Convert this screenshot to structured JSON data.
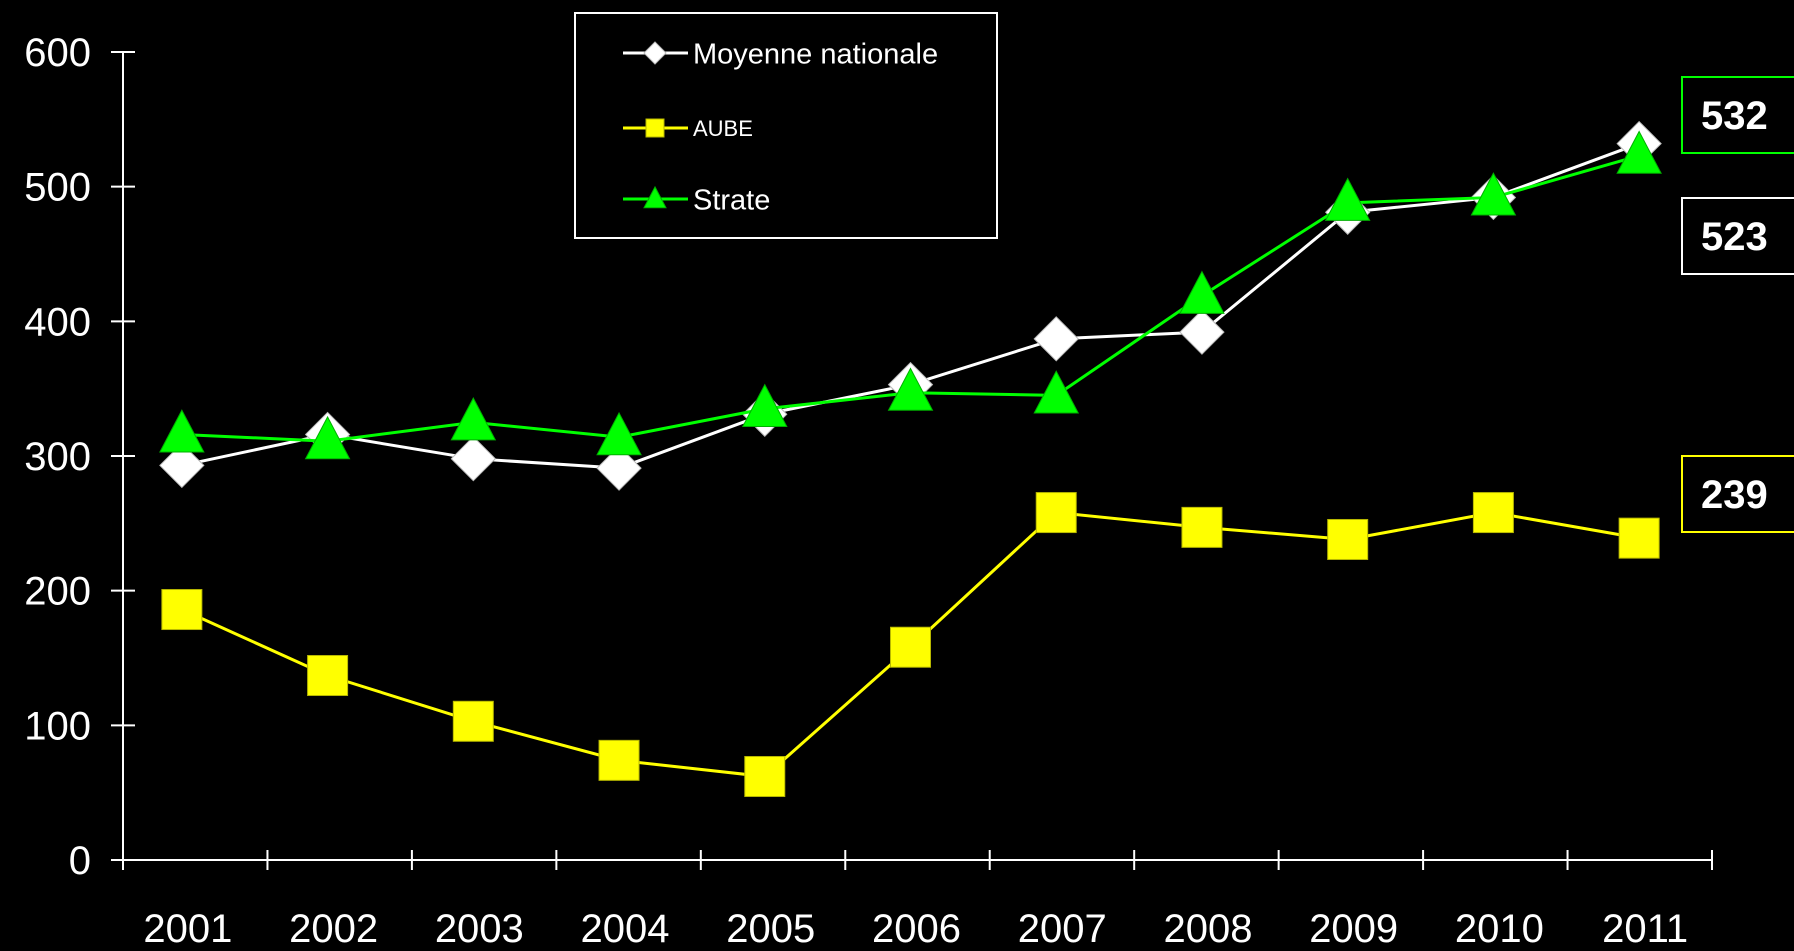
{
  "chart_data": {
    "type": "line",
    "title": "",
    "xlabel": "",
    "ylabel": "",
    "x": [
      "2001",
      "2002",
      "2003",
      "2004",
      "2005",
      "2006",
      "2007",
      "2008",
      "2009",
      "2010",
      "2011"
    ],
    "ylim": [
      0,
      600
    ],
    "yticks": [
      "0",
      "100",
      "200",
      "300",
      "400",
      "500",
      "600"
    ],
    "grid": false,
    "legend_position": "top-center",
    "series": [
      {
        "name": "Moyenne nationale",
        "marker": "diamond",
        "color": "#ffffff",
        "values": [
          293,
          316,
          298,
          291,
          331,
          353,
          387,
          392,
          481,
          492,
          532
        ]
      },
      {
        "name": "AUBE",
        "marker": "square",
        "color": "#ffff00",
        "values": [
          186,
          137,
          103,
          74,
          62,
          158,
          258,
          247,
          238,
          258,
          239
        ]
      },
      {
        "name": "Strate",
        "marker": "triangle",
        "color": "#00ff00",
        "values": [
          316,
          311,
          325,
          314,
          335,
          347,
          345,
          419,
          488,
          492,
          523
        ]
      }
    ],
    "end_labels": [
      {
        "text": "532",
        "border": "#00ff00",
        "value": 532
      },
      {
        "text": "523",
        "border": "#ffffff",
        "value": 523
      },
      {
        "text": "239",
        "border": "#ffff00",
        "value": 239
      }
    ]
  }
}
